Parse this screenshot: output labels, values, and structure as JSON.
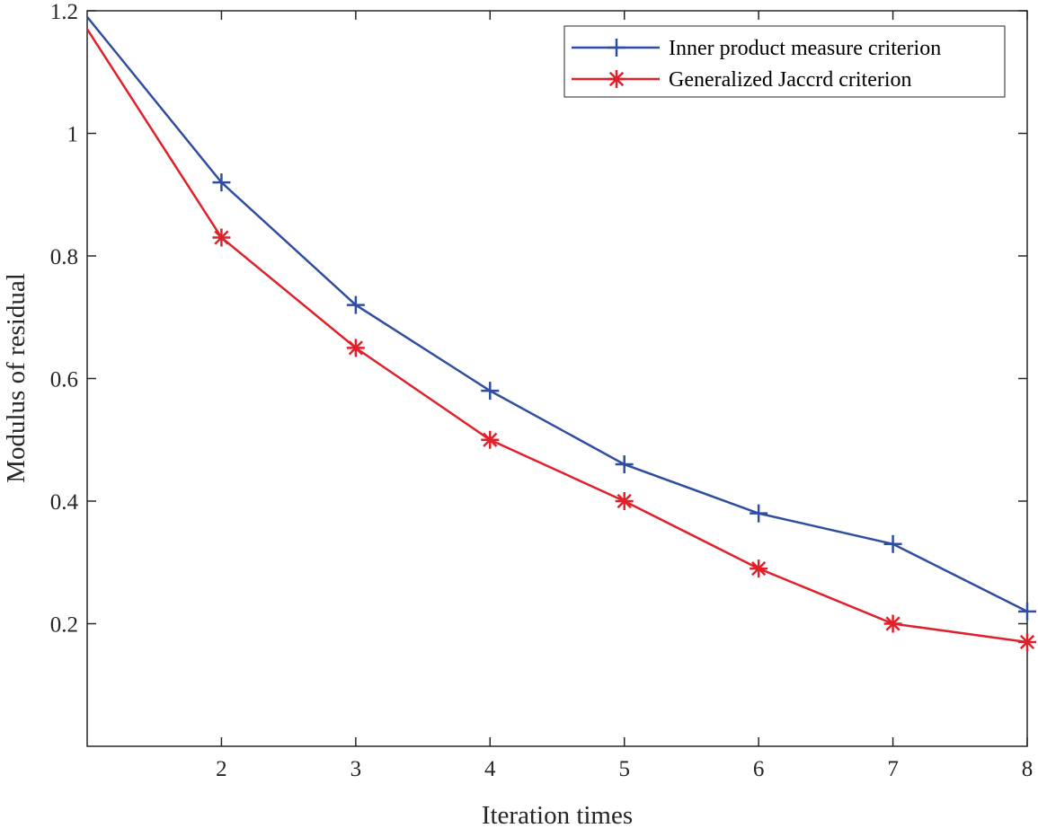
{
  "chart_data": {
    "type": "line",
    "title": "",
    "xlabel": "Iteration times",
    "ylabel": "Modulus of residual",
    "xlim": [
      1,
      8
    ],
    "ylim": [
      0.0,
      1.2
    ],
    "xticks": [
      2,
      3,
      4,
      5,
      6,
      7,
      8
    ],
    "yticks": [
      0.2,
      0.4,
      0.6,
      0.8,
      1.0,
      1.2
    ],
    "ytick_labels": [
      "0.2",
      "0.4",
      "0.6",
      "0.8",
      "1",
      "1.2"
    ],
    "grid": false,
    "legend_position": "top-right",
    "x": [
      1,
      2,
      3,
      4,
      5,
      6,
      7,
      8
    ],
    "series": [
      {
        "name": "Inner product measure criterion",
        "color": "#2f4e9f",
        "marker": "plus",
        "values": [
          1.19,
          0.92,
          0.72,
          0.58,
          0.46,
          0.38,
          0.33,
          0.22
        ]
      },
      {
        "name": "Generalized Jaccrd criterion",
        "color": "#e0212b",
        "marker": "asterisk",
        "values": [
          1.17,
          0.83,
          0.65,
          0.5,
          0.4,
          0.29,
          0.2,
          0.17
        ]
      }
    ]
  }
}
